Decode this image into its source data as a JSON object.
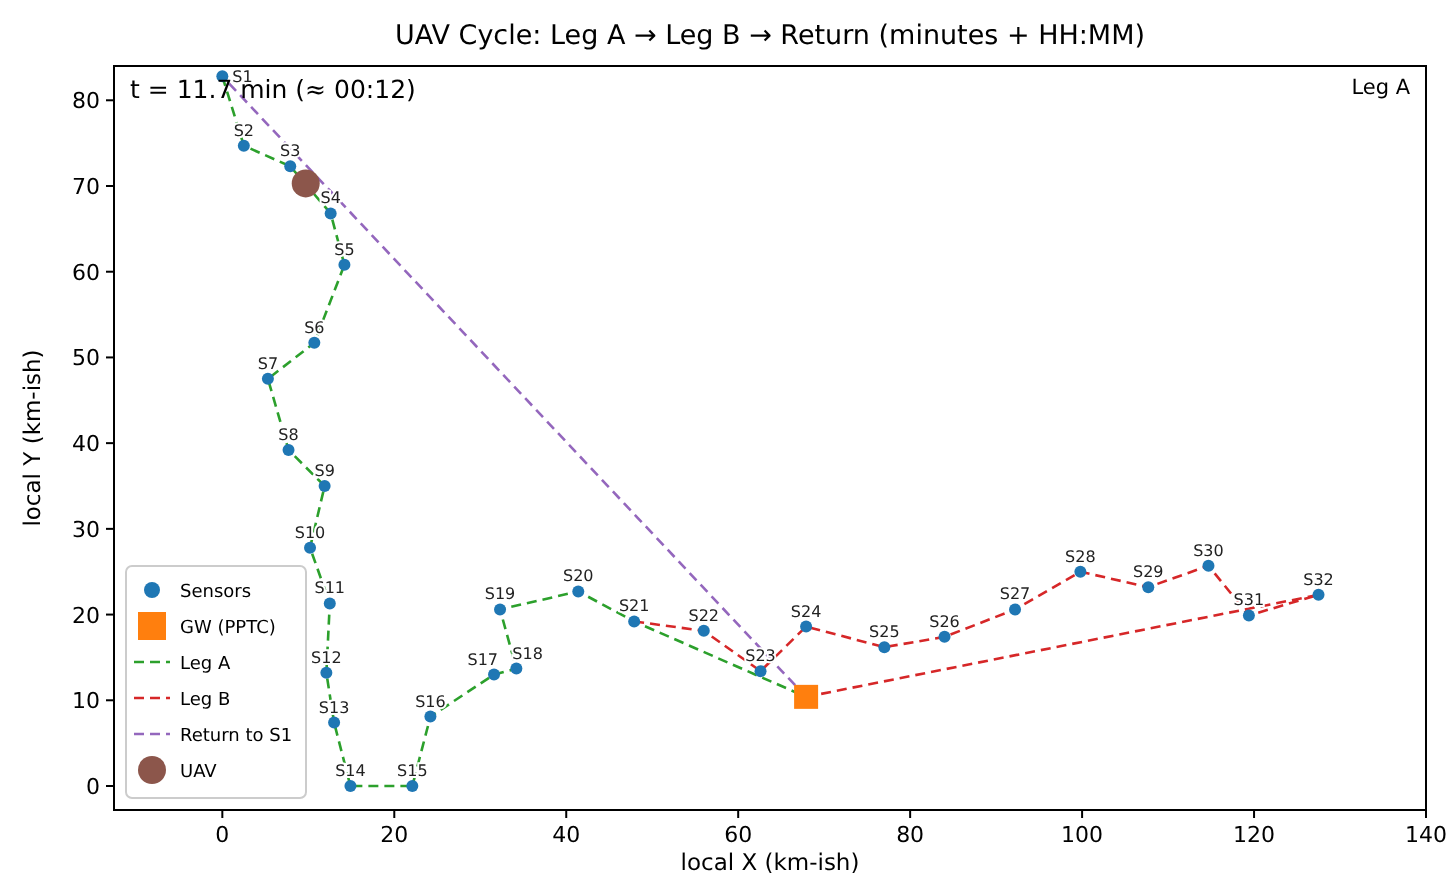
{
  "chart_data": {
    "type": "scatter",
    "title": "UAV Cycle: Leg A → Leg B → Return (minutes + HH:MM)",
    "xlabel": "local X (km-ish)",
    "ylabel": "local Y (km-ish)",
    "xlim": [
      -12.6,
      140
    ],
    "ylim": [
      -2.8,
      84
    ],
    "xticks": [
      0,
      20,
      40,
      60,
      80,
      100,
      120,
      140
    ],
    "yticks": [
      0,
      10,
      20,
      30,
      40,
      50,
      60,
      70,
      80
    ],
    "grid": false,
    "legend": "bottom left",
    "series": [
      {
        "name": "Sensors",
        "type": "scatter",
        "marker": "circle",
        "color": "#1f77b4",
        "x": [
          0,
          2.5,
          7.9,
          12.6,
          14.2,
          10.7,
          5.3,
          7.7,
          11.9,
          10.2,
          12.5,
          12.1,
          13,
          14.9,
          22.1,
          24.2,
          31.6,
          34.2,
          32.3,
          41.4,
          47.9,
          56,
          62.6,
          67.9,
          77,
          84,
          92.2,
          99.8,
          107.7,
          114.7,
          119.4,
          127.5
        ],
        "values": [
          82.8,
          74.7,
          72.3,
          66.8,
          60.8,
          51.7,
          47.5,
          39.2,
          35,
          27.8,
          21.3,
          13.2,
          7.4,
          0,
          0,
          8.1,
          13,
          13.7,
          20.6,
          22.7,
          19.2,
          18.1,
          13.4,
          18.6,
          16.2,
          17.4,
          20.6,
          25,
          23.2,
          25.7,
          19.9,
          22.3
        ]
      },
      {
        "name": "GW (PPTC)",
        "type": "scatter",
        "marker": "square",
        "color": "#ff7f0e",
        "x": [
          67.9
        ],
        "values": [
          10.4
        ]
      },
      {
        "name": "Leg A",
        "type": "line",
        "line_style": "dashed",
        "color": "#2ca02c",
        "x": [
          0,
          2.5,
          7.9,
          12.6,
          14.2,
          10.7,
          5.3,
          7.7,
          11.9,
          10.2,
          12.5,
          12.1,
          13,
          14.9,
          22.1,
          24.2,
          31.6,
          34.2,
          32.3,
          41.4,
          47.9,
          67.9
        ],
        "values": [
          82.8,
          74.7,
          72.3,
          66.8,
          60.8,
          51.7,
          47.5,
          39.2,
          35,
          27.8,
          21.3,
          13.2,
          7.4,
          0,
          0,
          8.1,
          13,
          13.7,
          20.6,
          22.7,
          19.2,
          10.4
        ]
      },
      {
        "name": "Leg B",
        "type": "line",
        "line_style": "dashed",
        "color": "#d62728",
        "x": [
          47.9,
          56,
          62.6,
          67.9,
          77,
          84,
          92.2,
          99.8,
          107.7,
          114.7,
          119.4,
          127.5,
          67.9
        ],
        "values": [
          19.2,
          18.1,
          13.4,
          18.6,
          16.2,
          17.4,
          20.6,
          25,
          23.2,
          25.7,
          19.9,
          22.3,
          10.4
        ]
      },
      {
        "name": "Return to S1",
        "type": "line",
        "line_style": "dashed",
        "color": "#9467bd",
        "x": [
          67.9,
          0
        ],
        "values": [
          10.4,
          82.8
        ]
      },
      {
        "name": "UAV",
        "type": "scatter",
        "marker": "circle",
        "color": "#8c564b",
        "x": [
          9.7
        ],
        "values": [
          70.3
        ]
      }
    ],
    "annotations": [
      "t = 11.7 min  (≈ 00:12)",
      "Leg A",
      {
        "text": "S1",
        "x": 0,
        "y": 82.8
      },
      {
        "text": "S2",
        "x": 2.5,
        "y": 74.7
      },
      {
        "text": "S3",
        "x": 7.9,
        "y": 72.3
      },
      {
        "text": "S4",
        "x": 12.6,
        "y": 66.8
      },
      {
        "text": "S5",
        "x": 14.2,
        "y": 60.8
      },
      {
        "text": "S6",
        "x": 10.7,
        "y": 51.7
      },
      {
        "text": "S7",
        "x": 5.3,
        "y": 47.5
      },
      {
        "text": "S8",
        "x": 7.7,
        "y": 39.2
      },
      {
        "text": "S9",
        "x": 11.9,
        "y": 35
      },
      {
        "text": "S10",
        "x": 10.2,
        "y": 27.8
      },
      {
        "text": "S11",
        "x": 12.5,
        "y": 21.3
      },
      {
        "text": "S12",
        "x": 12.1,
        "y": 13.2
      },
      {
        "text": "S13",
        "x": 13,
        "y": 7.4
      },
      {
        "text": "S14",
        "x": 14.9,
        "y": 0
      },
      {
        "text": "S15",
        "x": 22.1,
        "y": 0
      },
      {
        "text": "S16",
        "x": 24.2,
        "y": 8.1
      },
      {
        "text": "S17",
        "x": 31.6,
        "y": 13
      },
      {
        "text": "S18",
        "x": 34.2,
        "y": 13.7
      },
      {
        "text": "S19",
        "x": 32.3,
        "y": 20.6
      },
      {
        "text": "S20",
        "x": 41.4,
        "y": 22.7
      },
      {
        "text": "S21",
        "x": 47.9,
        "y": 19.2
      },
      {
        "text": "S22",
        "x": 56,
        "y": 18.1
      },
      {
        "text": "S23",
        "x": 62.6,
        "y": 13.4
      },
      {
        "text": "S24",
        "x": 67.9,
        "y": 18.6
      },
      {
        "text": "S25",
        "x": 77,
        "y": 16.2
      },
      {
        "text": "S26",
        "x": 84,
        "y": 17.4
      },
      {
        "text": "S27",
        "x": 92.2,
        "y": 20.6
      },
      {
        "text": "S28",
        "x": 99.8,
        "y": 25
      },
      {
        "text": "S29",
        "x": 107.7,
        "y": 23.2
      },
      {
        "text": "S30",
        "x": 114.7,
        "y": 25.7
      },
      {
        "text": "S31",
        "x": 119.4,
        "y": 19.9
      },
      {
        "text": "S32",
        "x": 127.5,
        "y": 22.3
      }
    ]
  }
}
